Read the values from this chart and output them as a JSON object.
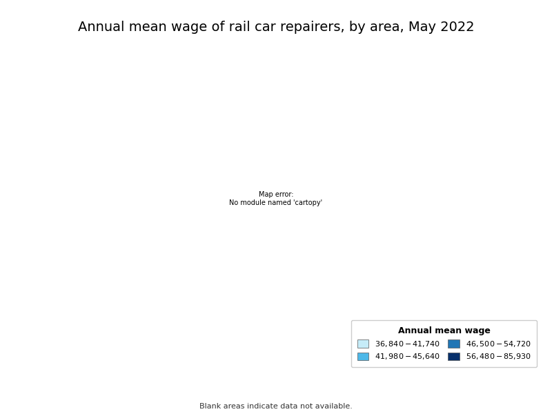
{
  "title": "Annual mean wage of rail car repairers, by area, May 2022",
  "legend_title": "Annual mean wage",
  "legend_items": [
    {
      "label": "$36,840 - $41,740",
      "color": "#c6ecf8"
    },
    {
      "label": "$41,980 - $45,640",
      "color": "#4db8e8"
    },
    {
      "label": "$46,500 - $54,720",
      "color": "#2176b5"
    },
    {
      "label": "$56,480 - $85,930",
      "color": "#08306b"
    }
  ],
  "blank_note": "Blank areas indicate data not available.",
  "background_color": "#ffffff",
  "no_data_color": "#ffffff",
  "border_color": "#aaaaaa",
  "title_fontsize": 14,
  "legend_title_fontsize": 9,
  "legend_fontsize": 8,
  "state_border_color": "#888888",
  "county_border_color": "#bbbbbb"
}
